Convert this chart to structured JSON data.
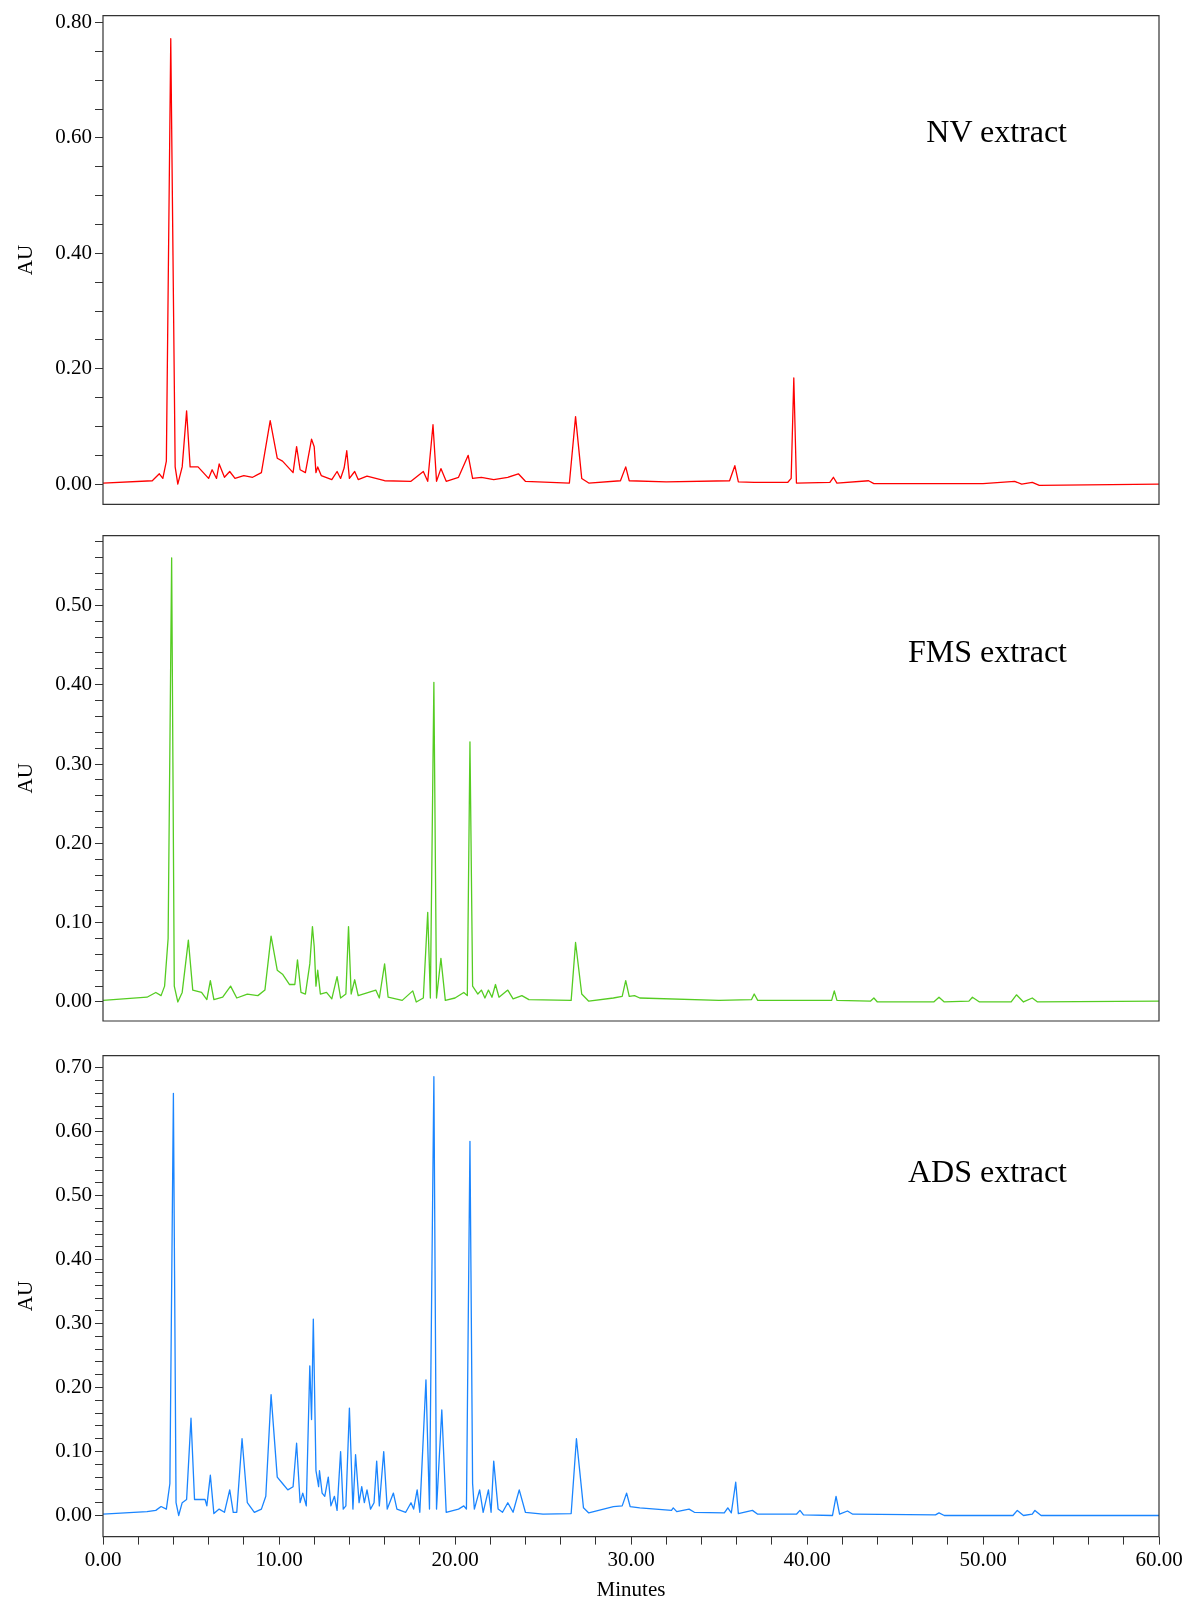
{
  "chart_data": [
    {
      "type": "line",
      "ylabel": "AU",
      "xlim": [
        0,
        60
      ],
      "ylim": [
        -0.035,
        0.812
      ],
      "tick_labels": "y",
      "grid": false,
      "legend": false,
      "marker": "none",
      "line_style": "solid",
      "yticks": [
        {
          "value": 0,
          "label": "0.00"
        },
        {
          "value": 0.05,
          "label": null
        },
        {
          "value": 0.1,
          "label": null
        },
        {
          "value": 0.15,
          "label": null
        },
        {
          "value": 0.2,
          "label": "0.20"
        },
        {
          "value": 0.25,
          "label": null
        },
        {
          "value": 0.3,
          "label": null
        },
        {
          "value": 0.35,
          "label": null
        },
        {
          "value": 0.4,
          "label": "0.40"
        },
        {
          "value": 0.45,
          "label": null
        },
        {
          "value": 0.5,
          "label": null
        },
        {
          "value": 0.55,
          "label": null
        },
        {
          "value": 0.6,
          "label": "0.60"
        },
        {
          "value": 0.65,
          "label": null
        },
        {
          "value": 0.7,
          "label": null
        },
        {
          "value": 0.75,
          "label": null
        },
        {
          "value": 0.8,
          "label": "0.80"
        }
      ],
      "series": [
        {
          "name": "NV extract",
          "color": "#ff0000",
          "x": [
            0,
            2.8,
            3.2,
            3.4,
            3.6,
            3.85,
            4.1,
            4.25,
            4.5,
            4.75,
            4.95,
            5.4,
            6.0,
            6.2,
            6.45,
            6.6,
            6.9,
            7.2,
            7.5,
            8.0,
            8.5,
            9.0,
            9.5,
            9.9,
            10.2,
            10.5,
            10.8,
            11.0,
            11.2,
            11.5,
            11.85,
            12.0,
            12.1,
            12.2,
            12.4,
            13.0,
            13.3,
            13.5,
            13.7,
            13.85,
            14.0,
            14.3,
            14.5,
            15.0,
            16.0,
            17.5,
            18.2,
            18.45,
            18.75,
            18.95,
            19.2,
            19.5,
            20.2,
            20.75,
            21.0,
            21.5,
            22.2,
            23.0,
            23.6,
            24.0,
            26.5,
            26.85,
            27.2,
            27.6,
            29.4,
            29.7,
            29.9,
            32.0,
            35.6,
            35.9,
            36.1,
            37.0,
            38.9,
            39.1,
            39.25,
            39.4,
            41.3,
            41.5,
            41.7,
            43.5,
            43.8,
            50.0,
            51.8,
            52.2,
            52.8,
            53.2,
            60
          ],
          "values": [
            0.002,
            0.006,
            0.018,
            0.01,
            0.04,
            0.772,
            0.03,
            0.0,
            0.03,
            0.127,
            0.03,
            0.03,
            0.01,
            0.025,
            0.01,
            0.035,
            0.012,
            0.022,
            0.01,
            0.015,
            0.012,
            0.02,
            0.11,
            0.045,
            0.04,
            0.03,
            0.02,
            0.065,
            0.025,
            0.02,
            0.078,
            0.065,
            0.02,
            0.03,
            0.015,
            0.008,
            0.022,
            0.01,
            0.028,
            0.058,
            0.01,
            0.022,
            0.008,
            0.014,
            0.006,
            0.005,
            0.022,
            0.005,
            0.103,
            0.005,
            0.027,
            0.005,
            0.012,
            0.05,
            0.01,
            0.012,
            0.008,
            0.012,
            0.018,
            0.005,
            0.002,
            0.117,
            0.01,
            0.002,
            0.006,
            0.03,
            0.006,
            0.004,
            0.006,
            0.032,
            0.004,
            0.003,
            0.003,
            0.01,
            0.184,
            0.002,
            0.003,
            0.012,
            0.002,
            0.006,
            0.001,
            0.001,
            0.005,
            0.0,
            0.003,
            -0.002,
            0.0
          ]
        }
      ]
    },
    {
      "type": "line",
      "ylabel": "AU",
      "xlim": [
        0,
        60
      ],
      "ylim": [
        -0.024,
        0.588
      ],
      "tick_labels": "y",
      "grid": false,
      "legend": false,
      "marker": "none",
      "line_style": "solid",
      "yticks": [
        {
          "value": 0,
          "label": "0.00"
        },
        {
          "value": 0.02,
          "label": null
        },
        {
          "value": 0.04,
          "label": null
        },
        {
          "value": 0.06,
          "label": null
        },
        {
          "value": 0.08,
          "label": null
        },
        {
          "value": 0.1,
          "label": "0.10"
        },
        {
          "value": 0.12,
          "label": null
        },
        {
          "value": 0.14,
          "label": null
        },
        {
          "value": 0.16,
          "label": null
        },
        {
          "value": 0.18,
          "label": null
        },
        {
          "value": 0.2,
          "label": "0.20"
        },
        {
          "value": 0.22,
          "label": null
        },
        {
          "value": 0.24,
          "label": null
        },
        {
          "value": 0.26,
          "label": null
        },
        {
          "value": 0.28,
          "label": null
        },
        {
          "value": 0.3,
          "label": "0.30"
        },
        {
          "value": 0.32,
          "label": null
        },
        {
          "value": 0.34,
          "label": null
        },
        {
          "value": 0.36,
          "label": null
        },
        {
          "value": 0.38,
          "label": null
        },
        {
          "value": 0.4,
          "label": "0.40"
        },
        {
          "value": 0.42,
          "label": null
        },
        {
          "value": 0.44,
          "label": null
        },
        {
          "value": 0.46,
          "label": null
        },
        {
          "value": 0.48,
          "label": null
        },
        {
          "value": 0.5,
          "label": "0.50"
        },
        {
          "value": 0.52,
          "label": null
        },
        {
          "value": 0.54,
          "label": null
        },
        {
          "value": 0.56,
          "label": null
        },
        {
          "value": 0.58,
          "label": null
        }
      ],
      "series": [
        {
          "name": "FMS extract",
          "color": "#55cc22",
          "x": [
            0,
            2.5,
            3.0,
            3.3,
            3.5,
            3.7,
            3.9,
            4.05,
            4.25,
            4.5,
            4.85,
            5.1,
            5.6,
            5.9,
            6.1,
            6.3,
            6.8,
            7.25,
            7.6,
            8.2,
            8.8,
            9.2,
            9.55,
            9.9,
            10.2,
            10.6,
            10.9,
            11.05,
            11.25,
            11.5,
            11.75,
            11.9,
            12.0,
            12.1,
            12.2,
            12.35,
            12.7,
            13.0,
            13.3,
            13.5,
            13.8,
            13.95,
            14.1,
            14.3,
            14.5,
            15.5,
            15.7,
            16.0,
            16.2,
            17.0,
            17.6,
            17.8,
            18.2,
            18.45,
            18.6,
            18.8,
            18.95,
            19.2,
            19.45,
            20.0,
            20.5,
            20.7,
            20.85,
            21.0,
            21.3,
            21.5,
            21.7,
            21.9,
            22.1,
            22.3,
            22.5,
            23.0,
            23.3,
            23.8,
            24.2,
            26.6,
            26.85,
            27.2,
            27.6,
            29.0,
            29.5,
            29.7,
            29.9,
            30.2,
            30.5,
            35.0,
            36.85,
            37.0,
            37.2,
            41.4,
            41.55,
            41.7,
            43.6,
            43.8,
            44.0,
            47.2,
            47.5,
            47.8,
            49.2,
            49.4,
            49.8,
            51.6,
            51.9,
            52.3,
            52.8,
            53.1,
            60
          ],
          "values": [
            0.002,
            0.006,
            0.012,
            0.008,
            0.02,
            0.08,
            0.56,
            0.02,
            0.0,
            0.012,
            0.078,
            0.015,
            0.012,
            0.003,
            0.027,
            0.003,
            0.006,
            0.02,
            0.005,
            0.01,
            0.008,
            0.015,
            0.083,
            0.04,
            0.035,
            0.022,
            0.022,
            0.053,
            0.012,
            0.01,
            0.048,
            0.095,
            0.07,
            0.02,
            0.04,
            0.01,
            0.012,
            0.004,
            0.032,
            0.005,
            0.01,
            0.095,
            0.01,
            0.028,
            0.008,
            0.015,
            0.005,
            0.048,
            0.006,
            0.002,
            0.014,
            0.0,
            0.005,
            0.113,
            0.005,
            0.403,
            0.005,
            0.055,
            0.002,
            0.005,
            0.012,
            0.008,
            0.328,
            0.02,
            0.01,
            0.015,
            0.005,
            0.015,
            0.006,
            0.022,
            0.006,
            0.015,
            0.004,
            0.008,
            0.003,
            0.002,
            0.075,
            0.01,
            0.001,
            0.005,
            0.007,
            0.027,
            0.007,
            0.008,
            0.005,
            0.002,
            0.003,
            0.01,
            0.002,
            0.002,
            0.014,
            0.002,
            0.001,
            0.005,
            0.0,
            0.0,
            0.006,
            0.0,
            0.001,
            0.006,
            0.0,
            0.0,
            0.009,
            0.0,
            0.005,
            0.0,
            0.001
          ]
        }
      ]
    },
    {
      "type": "line",
      "xlabel": "Minutes",
      "ylabel": "AU",
      "xlim": [
        0,
        60
      ],
      "ylim": [
        -0.033,
        0.719
      ],
      "grid": false,
      "legend": false,
      "marker": "none",
      "line_style": "solid",
      "xticks": [
        {
          "value": 0,
          "label": "0.00"
        },
        {
          "value": 2,
          "label": null
        },
        {
          "value": 4,
          "label": null
        },
        {
          "value": 6,
          "label": null
        },
        {
          "value": 8,
          "label": null
        },
        {
          "value": 10,
          "label": "10.00"
        },
        {
          "value": 12,
          "label": null
        },
        {
          "value": 14,
          "label": null
        },
        {
          "value": 16,
          "label": null
        },
        {
          "value": 18,
          "label": null
        },
        {
          "value": 20,
          "label": "20.00"
        },
        {
          "value": 22,
          "label": null
        },
        {
          "value": 24,
          "label": null
        },
        {
          "value": 26,
          "label": null
        },
        {
          "value": 28,
          "label": null
        },
        {
          "value": 30,
          "label": "30.00"
        },
        {
          "value": 32,
          "label": null
        },
        {
          "value": 34,
          "label": null
        },
        {
          "value": 36,
          "label": null
        },
        {
          "value": 38,
          "label": null
        },
        {
          "value": 40,
          "label": "40.00"
        },
        {
          "value": 42,
          "label": null
        },
        {
          "value": 44,
          "label": null
        },
        {
          "value": 46,
          "label": null
        },
        {
          "value": 48,
          "label": null
        },
        {
          "value": 50,
          "label": "50.00"
        },
        {
          "value": 52,
          "label": null
        },
        {
          "value": 54,
          "label": null
        },
        {
          "value": 56,
          "label": null
        },
        {
          "value": 58,
          "label": null
        },
        {
          "value": 60,
          "label": "60.00"
        }
      ],
      "yticks": [
        {
          "value": 0,
          "label": "0.00"
        },
        {
          "value": 0.02,
          "label": null
        },
        {
          "value": 0.04,
          "label": null
        },
        {
          "value": 0.06,
          "label": null
        },
        {
          "value": 0.08,
          "label": null
        },
        {
          "value": 0.1,
          "label": "0.10"
        },
        {
          "value": 0.12,
          "label": null
        },
        {
          "value": 0.14,
          "label": null
        },
        {
          "value": 0.16,
          "label": null
        },
        {
          "value": 0.18,
          "label": null
        },
        {
          "value": 0.2,
          "label": "0.20"
        },
        {
          "value": 0.22,
          "label": null
        },
        {
          "value": 0.24,
          "label": null
        },
        {
          "value": 0.26,
          "label": null
        },
        {
          "value": 0.28,
          "label": null
        },
        {
          "value": 0.3,
          "label": "0.30"
        },
        {
          "value": 0.32,
          "label": null
        },
        {
          "value": 0.34,
          "label": null
        },
        {
          "value": 0.36,
          "label": null
        },
        {
          "value": 0.38,
          "label": null
        },
        {
          "value": 0.4,
          "label": "0.40"
        },
        {
          "value": 0.42,
          "label": null
        },
        {
          "value": 0.44,
          "label": null
        },
        {
          "value": 0.46,
          "label": null
        },
        {
          "value": 0.48,
          "label": null
        },
        {
          "value": 0.5,
          "label": "0.50"
        },
        {
          "value": 0.52,
          "label": null
        },
        {
          "value": 0.54,
          "label": null
        },
        {
          "value": 0.56,
          "label": null
        },
        {
          "value": 0.58,
          "label": null
        },
        {
          "value": 0.6,
          "label": "0.60"
        },
        {
          "value": 0.62,
          "label": null
        },
        {
          "value": 0.64,
          "label": null
        },
        {
          "value": 0.66,
          "label": null
        },
        {
          "value": 0.68,
          "label": null
        },
        {
          "value": 0.7,
          "label": "0.70"
        }
      ],
      "series": [
        {
          "name": "ADS extract",
          "color": "#1a85ff",
          "x": [
            0,
            2.5,
            3.0,
            3.3,
            3.6,
            3.8,
            4.0,
            4.15,
            4.3,
            4.5,
            4.75,
            5.0,
            5.2,
            5.5,
            5.8,
            5.9,
            6.1,
            6.3,
            6.6,
            6.9,
            7.2,
            7.4,
            7.6,
            7.9,
            8.2,
            8.6,
            9.0,
            9.25,
            9.55,
            9.9,
            10.2,
            10.5,
            10.8,
            11.0,
            11.2,
            11.35,
            11.55,
            11.75,
            11.85,
            11.95,
            12.1,
            12.25,
            12.3,
            12.45,
            12.6,
            12.8,
            12.95,
            13.15,
            13.3,
            13.5,
            13.65,
            13.8,
            14.0,
            14.2,
            14.35,
            14.55,
            14.7,
            14.85,
            15.0,
            15.2,
            15.4,
            15.55,
            15.7,
            15.95,
            16.15,
            16.5,
            16.7,
            17.2,
            17.5,
            17.65,
            17.85,
            18.0,
            18.35,
            18.55,
            18.8,
            18.95,
            19.25,
            19.5,
            20.2,
            20.5,
            20.65,
            20.85,
            21.0,
            21.1,
            21.4,
            21.6,
            21.9,
            22.05,
            22.2,
            22.45,
            22.7,
            23.0,
            23.3,
            23.65,
            24.0,
            25.0,
            26.6,
            26.9,
            27.3,
            27.6,
            29.0,
            29.5,
            29.75,
            29.95,
            30.5,
            32.3,
            32.4,
            32.6,
            33.3,
            33.6,
            35.3,
            35.5,
            35.7,
            35.95,
            36.1,
            36.9,
            37.2,
            39.4,
            39.6,
            39.8,
            41.45,
            41.65,
            41.85,
            42.3,
            42.6,
            47.3,
            47.5,
            47.8,
            51.7,
            51.95,
            52.3,
            52.8,
            52.95,
            53.3,
            60
          ],
          "values": [
            0.002,
            0.006,
            0.008,
            0.014,
            0.01,
            0.05,
            0.66,
            0.02,
            0.0,
            0.02,
            0.025,
            0.152,
            0.025,
            0.025,
            0.025,
            0.015,
            0.063,
            0.003,
            0.01,
            0.005,
            0.04,
            0.005,
            0.005,
            0.12,
            0.02,
            0.005,
            0.01,
            0.03,
            0.189,
            0.06,
            0.05,
            0.04,
            0.045,
            0.113,
            0.02,
            0.035,
            0.015,
            0.234,
            0.15,
            0.307,
            0.07,
            0.045,
            0.07,
            0.035,
            0.03,
            0.06,
            0.015,
            0.03,
            0.008,
            0.1,
            0.01,
            0.015,
            0.168,
            0.01,
            0.095,
            0.02,
            0.045,
            0.02,
            0.04,
            0.01,
            0.02,
            0.085,
            0.015,
            0.1,
            0.01,
            0.035,
            0.01,
            0.005,
            0.02,
            0.01,
            0.04,
            0.005,
            0.212,
            0.01,
            0.686,
            0.01,
            0.165,
            0.005,
            0.01,
            0.015,
            0.01,
            0.585,
            0.05,
            0.01,
            0.04,
            0.005,
            0.04,
            0.005,
            0.085,
            0.01,
            0.005,
            0.02,
            0.005,
            0.04,
            0.005,
            0.002,
            0.003,
            0.12,
            0.012,
            0.004,
            0.014,
            0.015,
            0.035,
            0.014,
            0.012,
            0.008,
            0.012,
            0.006,
            0.01,
            0.005,
            0.004,
            0.012,
            0.004,
            0.052,
            0.003,
            0.008,
            0.002,
            0.002,
            0.008,
            0.001,
            0.0,
            0.03,
            0.002,
            0.007,
            0.002,
            0.001,
            0.004,
            0.0,
            0.0,
            0.008,
            0.0,
            0.002,
            0.008,
            0.0,
            0.0
          ]
        }
      ]
    }
  ]
}
